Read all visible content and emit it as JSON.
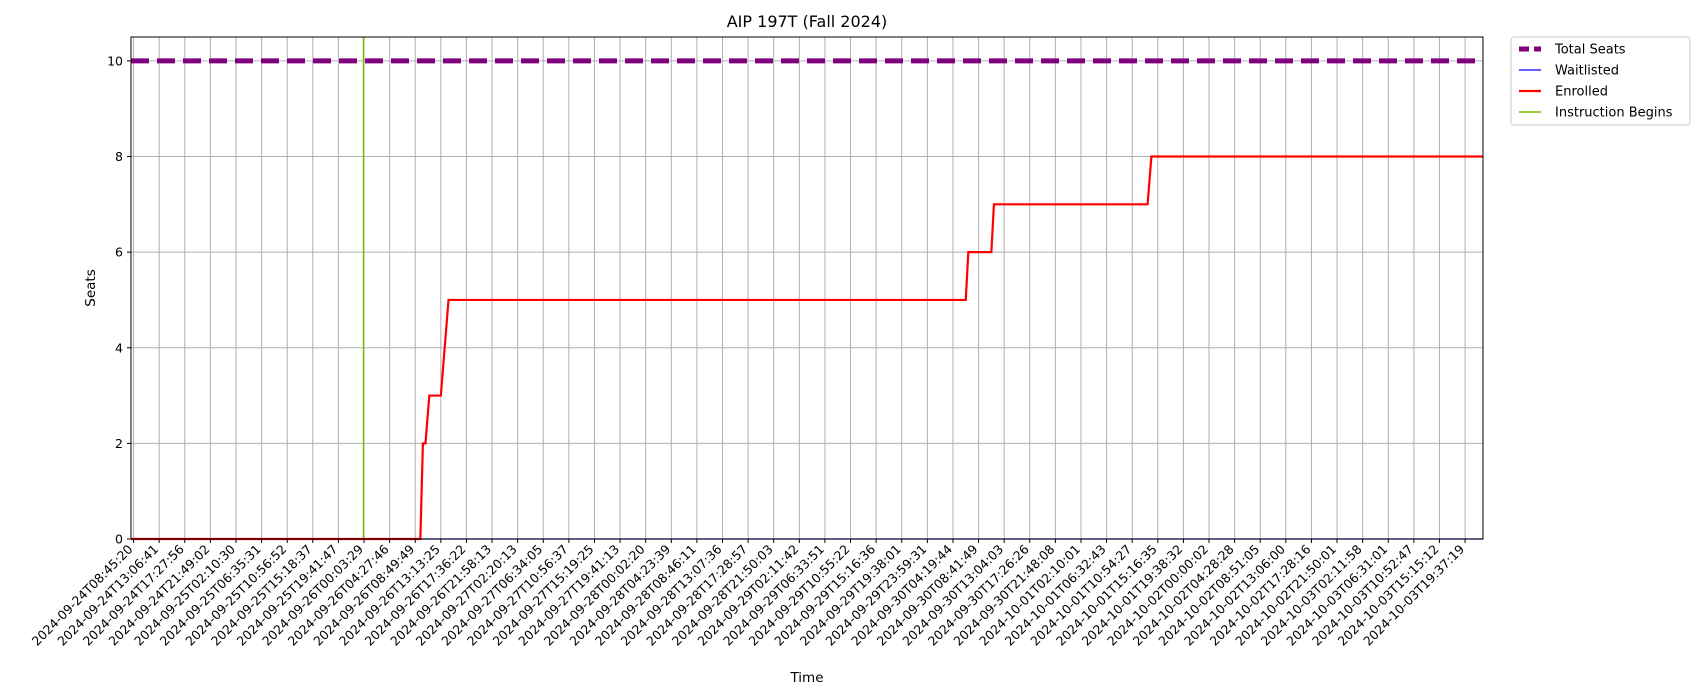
{
  "chart_data": {
    "type": "line",
    "title": "AIP 197T (Fall 2024)",
    "xlabel": "Time",
    "ylabel": "Seats",
    "ylim": [
      0,
      10.5
    ],
    "yticks": [
      0,
      2,
      4,
      6,
      8,
      10
    ],
    "grid": true,
    "legend_position": "outside-top-right",
    "x_ticks": [
      "2024-09-24T08:45:20",
      "2024-09-24T13:06:41",
      "2024-09-24T17:27:56",
      "2024-09-24T21:49:02",
      "2024-09-25T02:10:30",
      "2024-09-25T06:35:31",
      "2024-09-25T10:56:52",
      "2024-09-25T15:18:37",
      "2024-09-25T19:41:47",
      "2024-09-26T00:03:29",
      "2024-09-26T04:27:46",
      "2024-09-26T08:49:49",
      "2024-09-26T13:13:25",
      "2024-09-26T17:36:22",
      "2024-09-26T21:58:13",
      "2024-09-27T02:20:13",
      "2024-09-27T06:34:05",
      "2024-09-27T10:56:37",
      "2024-09-27T15:19:25",
      "2024-09-27T19:41:13",
      "2024-09-28T00:02:20",
      "2024-09-28T04:23:39",
      "2024-09-28T08:46:11",
      "2024-09-28T13:07:36",
      "2024-09-28T17:28:57",
      "2024-09-28T21:50:03",
      "2024-09-29T02:11:42",
      "2024-09-29T06:33:51",
      "2024-09-29T10:55:22",
      "2024-09-29T15:16:36",
      "2024-09-29T19:38:01",
      "2024-09-29T23:59:31",
      "2024-09-30T04:19:44",
      "2024-09-30T08:41:49",
      "2024-09-30T13:04:03",
      "2024-09-30T17:26:26",
      "2024-09-30T21:48:08",
      "2024-10-01T02:10:01",
      "2024-10-01T06:32:43",
      "2024-10-01T10:54:27",
      "2024-10-01T15:16:35",
      "2024-10-01T19:38:32",
      "2024-10-02T00:00:02",
      "2024-10-02T04:28:28",
      "2024-10-02T08:51:05",
      "2024-10-02T13:06:00",
      "2024-10-02T17:28:16",
      "2024-10-02T21:50:01",
      "2024-10-03T02:11:58",
      "2024-10-03T06:31:01",
      "2024-10-03T10:52:47",
      "2024-10-03T15:15:12",
      "2024-10-03T19:37:19"
    ],
    "x_range_ticks": [
      -0.1,
      52.7
    ],
    "series": [
      {
        "name": "Total Seats",
        "color": "#800080",
        "style": "dashed",
        "points": [
          [
            -0.1,
            10
          ],
          [
            52.7,
            10
          ]
        ]
      },
      {
        "name": "Waitlisted",
        "color": "#0000ff",
        "style": "solid",
        "points": [
          [
            -0.1,
            0
          ],
          [
            52.7,
            0
          ]
        ]
      },
      {
        "name": "Enrolled",
        "color": "#ff0000",
        "style": "solid",
        "points": [
          [
            -0.1,
            0
          ],
          [
            11.2,
            0
          ],
          [
            11.3,
            2
          ],
          [
            11.4,
            2
          ],
          [
            11.55,
            3
          ],
          [
            12.0,
            3
          ],
          [
            12.3,
            5
          ],
          [
            32.5,
            5
          ],
          [
            32.6,
            6
          ],
          [
            33.5,
            6
          ],
          [
            33.6,
            7
          ],
          [
            39.6,
            7
          ],
          [
            39.75,
            8
          ],
          [
            52.7,
            8
          ]
        ]
      }
    ],
    "vertical_lines": [
      {
        "name": "Instruction Begins",
        "color": "#7fb800",
        "x": 8.98
      }
    ]
  }
}
